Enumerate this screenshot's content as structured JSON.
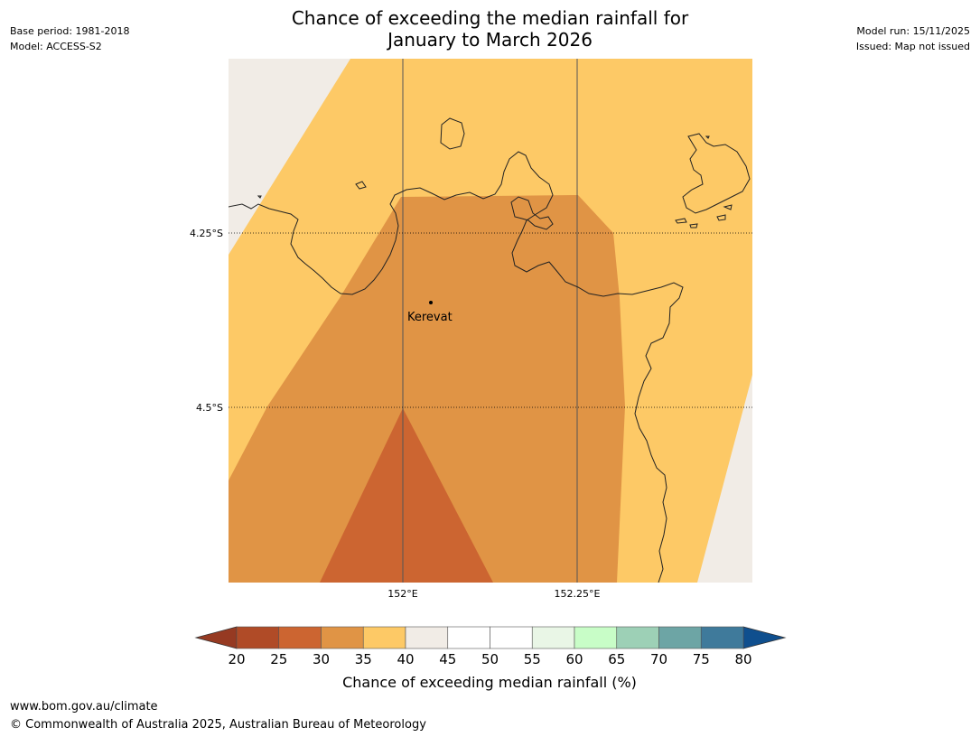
{
  "title": {
    "line1": "Chance of exceeding the median rainfall for",
    "line2": "January to March 2026"
  },
  "meta": {
    "base_period": "Base period: 1981-2018",
    "model": "Model: ACCESS-S2",
    "model_run": "Model run: 15/11/2025",
    "issued": "Issued: Map not issued"
  },
  "map": {
    "lat_labels": [
      "4.25°S",
      "4.5°S"
    ],
    "lon_labels": [
      "152°E",
      "152.25°E"
    ],
    "place": {
      "name": "Kerevat"
    },
    "colors": {
      "c35_40": "#fdc966",
      "c30_35": "#e09445",
      "c25_30": "#cc6531",
      "c40_45": "#f1ece6"
    }
  },
  "colorbar": {
    "title": "Chance of exceeding median rainfall (%)",
    "ticks": [
      "20",
      "25",
      "30",
      "35",
      "40",
      "45",
      "50",
      "55",
      "60",
      "65",
      "70",
      "75",
      "80"
    ],
    "low_extend_color": "#963a22",
    "high_extend_color": "#0f4f8e",
    "colors": [
      "#b04b27",
      "#cc6531",
      "#e09445",
      "#fdc966",
      "#f1ece6",
      "#ffffff",
      "#ffffff",
      "#e9f6e6",
      "#c8fdc7",
      "#9dd0b6",
      "#6da5a5",
      "#3f7a9b"
    ]
  },
  "footer": {
    "url": "www.bom.gov.au/climate",
    "copyright": "© Commonwealth of Australia 2025, Australian Bureau of Meteorology"
  }
}
